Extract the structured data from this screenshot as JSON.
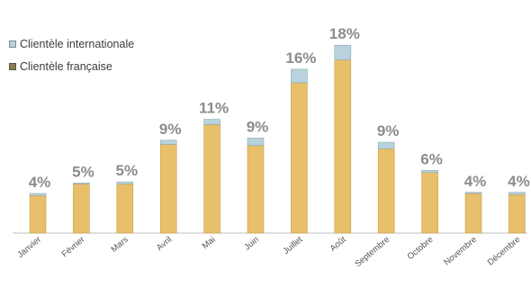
{
  "chart_data": {
    "type": "bar",
    "stacked": true,
    "categories": [
      "Janvier",
      "Février",
      "Mars",
      "Avril",
      "Mai",
      "Juin",
      "Juillet",
      "Août",
      "Septembre",
      "Octobre",
      "Novembre",
      "Décembre"
    ],
    "series": [
      {
        "name": "Clientèle française",
        "color": "#e8bf6a",
        "values": [
          3.6,
          4.7,
          4.7,
          8.5,
          10.4,
          8.4,
          14.4,
          16.6,
          8.1,
          5.8,
          3.8,
          3.7
        ]
      },
      {
        "name": "Clientèle internationale",
        "color": "#b9d3de",
        "values": [
          0.2,
          0.1,
          0.2,
          0.4,
          0.5,
          0.7,
          1.3,
          1.4,
          0.6,
          0.2,
          0.1,
          0.2
        ]
      }
    ],
    "data_labels": [
      "4%",
      "5%",
      "5%",
      "9%",
      "11%",
      "9%",
      "16%",
      "18%",
      "9%",
      "6%",
      "4%",
      "4%"
    ],
    "ylim": [
      0,
      18
    ],
    "grid": false,
    "legend": "top-left"
  }
}
